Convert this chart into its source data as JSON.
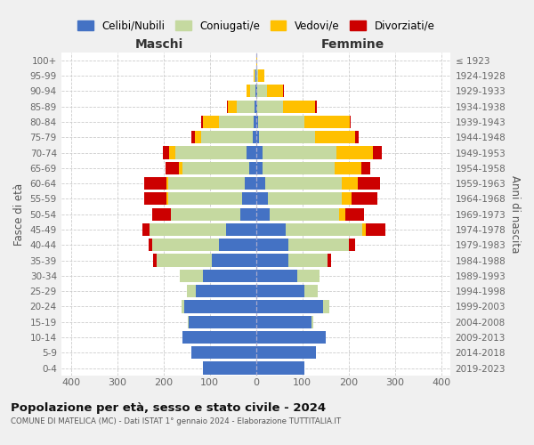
{
  "age_groups": [
    "100+",
    "95-99",
    "90-94",
    "85-89",
    "80-84",
    "75-79",
    "70-74",
    "65-69",
    "60-64",
    "55-59",
    "50-54",
    "45-49",
    "40-44",
    "35-39",
    "30-34",
    "25-29",
    "20-24",
    "15-19",
    "10-14",
    "5-9",
    "0-4"
  ],
  "birth_years": [
    "≤ 1923",
    "1924-1928",
    "1929-1933",
    "1934-1938",
    "1939-1943",
    "1944-1948",
    "1949-1953",
    "1954-1958",
    "1959-1963",
    "1964-1968",
    "1969-1973",
    "1974-1978",
    "1979-1983",
    "1984-1988",
    "1989-1993",
    "1994-1998",
    "1999-2003",
    "2004-2008",
    "2009-2013",
    "2014-2018",
    "2019-2023"
  ],
  "colors": {
    "celibi": "#4472c4",
    "coniugati": "#c5d9a0",
    "vedovi": "#ffc000",
    "divorziati": "#cc0000"
  },
  "maschi": {
    "celibi": [
      0,
      1,
      2,
      3,
      5,
      8,
      20,
      14,
      25,
      30,
      35,
      65,
      80,
      95,
      115,
      130,
      155,
      145,
      160,
      140,
      115
    ],
    "coniugati": [
      0,
      2,
      10,
      38,
      75,
      110,
      155,
      145,
      165,
      160,
      150,
      165,
      145,
      120,
      50,
      20,
      6,
      2,
      0,
      0,
      0
    ],
    "vedovi": [
      0,
      2,
      8,
      20,
      35,
      15,
      12,
      8,
      3,
      3,
      0,
      0,
      0,
      0,
      0,
      0,
      0,
      0,
      0,
      0,
      0
    ],
    "divorziati": [
      0,
      0,
      1,
      2,
      3,
      6,
      14,
      28,
      48,
      48,
      40,
      15,
      8,
      8,
      0,
      0,
      0,
      0,
      0,
      0,
      0
    ]
  },
  "femmine": {
    "celibi": [
      0,
      1,
      3,
      3,
      4,
      7,
      14,
      14,
      20,
      25,
      30,
      65,
      70,
      70,
      90,
      105,
      145,
      120,
      150,
      130,
      105
    ],
    "coniugati": [
      0,
      4,
      20,
      55,
      100,
      120,
      160,
      155,
      165,
      160,
      150,
      165,
      130,
      85,
      48,
      28,
      14,
      3,
      0,
      0,
      0
    ],
    "vedovi": [
      3,
      12,
      35,
      70,
      98,
      88,
      78,
      58,
      35,
      22,
      12,
      8,
      0,
      0,
      0,
      0,
      0,
      0,
      0,
      0,
      0
    ],
    "divorziati": [
      0,
      0,
      2,
      3,
      3,
      7,
      20,
      20,
      48,
      55,
      42,
      42,
      14,
      8,
      0,
      0,
      0,
      0,
      0,
      0,
      0
    ]
  },
  "xlim": 420,
  "title": "Popolazione per età, sesso e stato civile - 2024",
  "subtitle": "COMUNE DI MATELICA (MC) - Dati ISTAT 1° gennaio 2024 - Elaborazione TUTTITALIA.IT",
  "xlabel_left": "Maschi",
  "xlabel_right": "Femmine",
  "ylabel": "Fasce di età",
  "ylabel_right": "Anni di nascita",
  "bg_color": "#f0f0f0",
  "plot_bg_color": "#ffffff",
  "legend_labels": [
    "Celibi/Nubili",
    "Coniugati/e",
    "Vedovi/e",
    "Divorziati/e"
  ],
  "xticks": [
    -400,
    -300,
    -200,
    -100,
    0,
    100,
    200,
    300,
    400
  ]
}
